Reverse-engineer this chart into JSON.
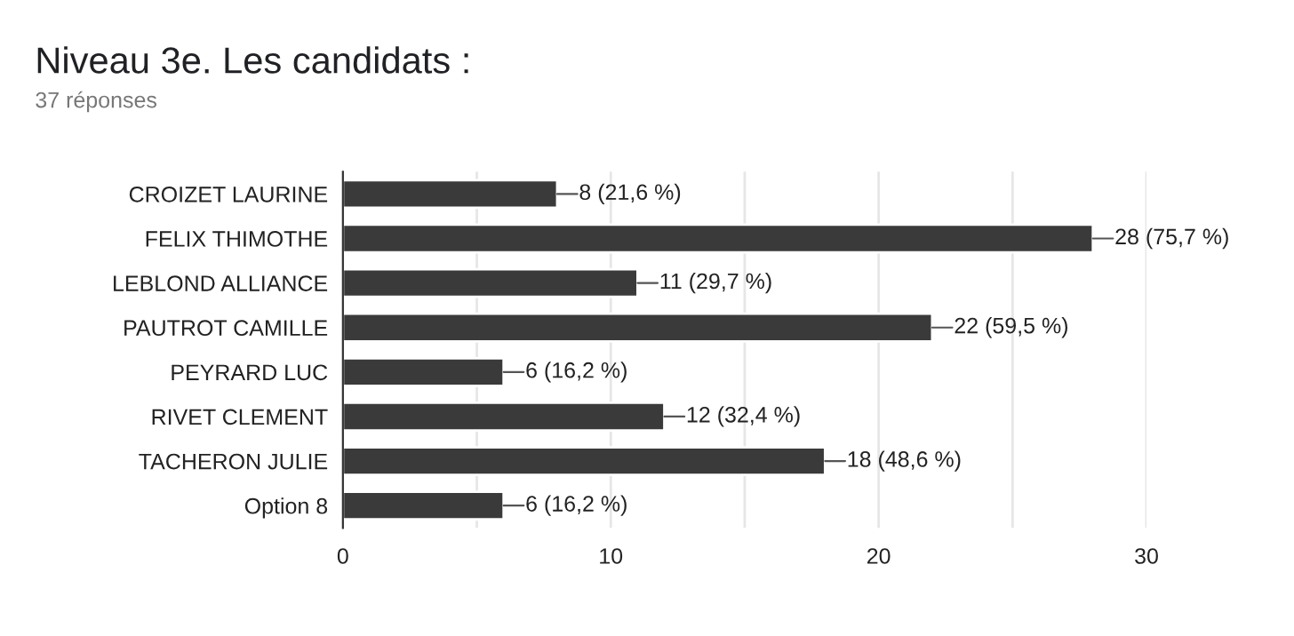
{
  "chart_data": {
    "type": "bar",
    "orientation": "horizontal",
    "title": "Niveau 3e. Les candidats :",
    "subtitle": "37 réponses",
    "categories": [
      "CROIZET LAURINE",
      "FELIX THIMOTHE",
      "LEBLOND ALLIANCE",
      "PAUTROT CAMILLE",
      "PEYRARD LUC",
      "RIVET CLEMENT",
      "TACHERON JULIE",
      "Option 8"
    ],
    "values": [
      8,
      28,
      11,
      22,
      6,
      12,
      18,
      6
    ],
    "value_labels": [
      "8 (21,6 %)",
      "28 (75,7 %)",
      "11 (29,7 %)",
      "22 (59,5 %)",
      "6 (16,2 %)",
      "12 (32,4 %)",
      "18 (48,6 %)",
      "6 (16,2 %)"
    ],
    "color": "#3a3a3a",
    "xlim": [
      0,
      30
    ],
    "xticks": [
      0,
      {
        "value": 5,
        "label": null
      },
      10,
      {
        "value": 15,
        "label": null
      },
      20,
      {
        "value": 25,
        "label": null
      },
      30
    ],
    "grid": "x"
  }
}
